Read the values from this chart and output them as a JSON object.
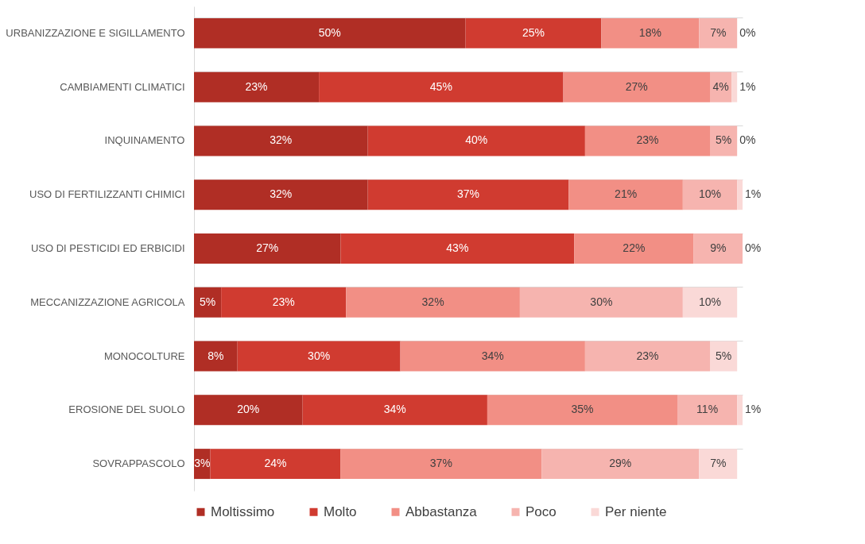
{
  "chart_data": {
    "type": "bar",
    "orientation": "horizontal",
    "stacked": true,
    "legend": "bottom",
    "grid": "y",
    "tick_labels": "y",
    "xlim": [
      0,
      101
    ],
    "categories": [
      "URBANIZZAZIONE E SIGILLAMENTO",
      "CAMBIAMENTI CLIMATICI",
      "INQUINAMENTO",
      "USO DI FERTILIZZANTI CHIMICI",
      "USO DI PESTICIDI ED ERBICIDI",
      "MECCANIZZAZIONE AGRICOLA",
      "MONOCOLTURE",
      "EROSIONE DEL SUOLO",
      "SOVRAPPASCOLO"
    ],
    "series": [
      {
        "name": "Moltissimo",
        "color": "#b02e25",
        "values": [
          50,
          23,
          32,
          32,
          27,
          5,
          8,
          20,
          3
        ],
        "value_labels": [
          "50%",
          "23%",
          "32%",
          "32%",
          "27%",
          "5%",
          "8%",
          "20%",
          "3%"
        ]
      },
      {
        "name": "Molto",
        "color": "#d03b30",
        "values": [
          25,
          45,
          40,
          37,
          43,
          23,
          30,
          34,
          24
        ],
        "value_labels": [
          "25%",
          "45%",
          "40%",
          "37%",
          "43%",
          "23%",
          "30%",
          "34%",
          "24%"
        ]
      },
      {
        "name": "Abbastanza",
        "color": "#f28f85",
        "values": [
          18,
          27,
          23,
          21,
          22,
          32,
          34,
          35,
          37
        ],
        "value_labels": [
          "18%",
          "27%",
          "23%",
          "21%",
          "22%",
          "32%",
          "34%",
          "35%",
          "37%"
        ]
      },
      {
        "name": "Poco",
        "color": "#f6b4af",
        "values": [
          7,
          4,
          5,
          10,
          9,
          30,
          23,
          11,
          29
        ],
        "value_labels": [
          "7%",
          "4%",
          "5%",
          "10%",
          "9%",
          "30%",
          "23%",
          "11%",
          "29%"
        ]
      },
      {
        "name": "Per niente",
        "color": "#fad9d7",
        "values": [
          0,
          1,
          0,
          1,
          0,
          10,
          5,
          1,
          7
        ],
        "value_labels": [
          "0%",
          "1%",
          "0%",
          "1%",
          "0%",
          "10%",
          "5%",
          "1%",
          "7%"
        ]
      }
    ]
  }
}
